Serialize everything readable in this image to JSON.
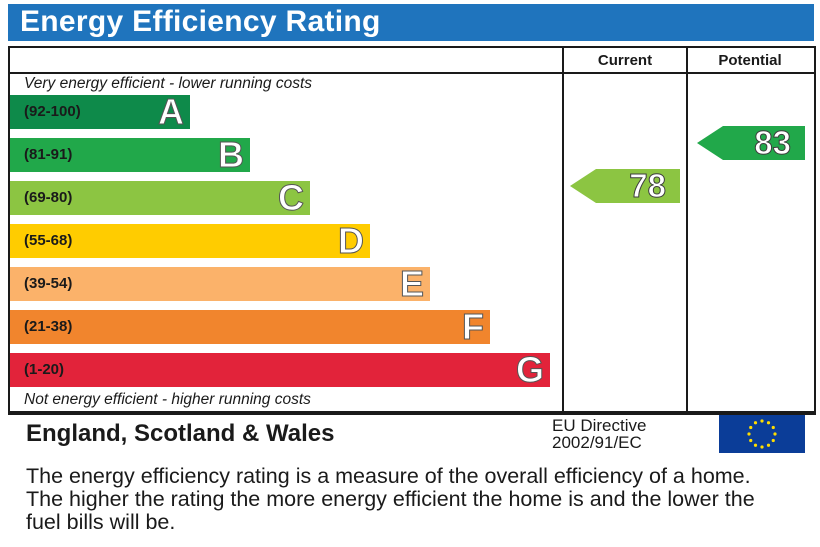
{
  "title": "Energy Efficiency Rating",
  "columns": {
    "current": "Current",
    "potential": "Potential"
  },
  "top_note": "Very energy efficient - lower running costs",
  "bottom_note": "Not energy efficient - higher running costs",
  "colors": {
    "header": "#1f74bd",
    "A": "#0e8a4a",
    "B": "#21a84a",
    "C": "#8cc542",
    "D": "#ffcc00",
    "E": "#fbb26a",
    "F": "#f1852d",
    "G": "#e2233a",
    "marker_current": "#8cc542",
    "marker_potential": "#21a84a"
  },
  "chart_data": {
    "type": "bar",
    "categories": [
      "A",
      "B",
      "C",
      "D",
      "E",
      "F",
      "G"
    ],
    "bands": [
      {
        "letter": "A",
        "range": "(92-100)"
      },
      {
        "letter": "B",
        "range": "(81-91)"
      },
      {
        "letter": "C",
        "range": "(69-80)"
      },
      {
        "letter": "D",
        "range": "(55-68)"
      },
      {
        "letter": "E",
        "range": "(39-54)"
      },
      {
        "letter": "F",
        "range": "(21-38)"
      },
      {
        "letter": "G",
        "range": "(1-20)"
      }
    ],
    "current": {
      "value": 78,
      "band": "C"
    },
    "potential": {
      "value": 83,
      "band": "B"
    }
  },
  "footer": {
    "region": "England, Scotland & Wales",
    "directive_line1": "EU Directive",
    "directive_line2": "2002/91/EC"
  },
  "description": "The energy efficiency rating is a measure of the overall efficiency of a home. The higher the rating the more energy efficient the home is and the lower the fuel bills will be."
}
